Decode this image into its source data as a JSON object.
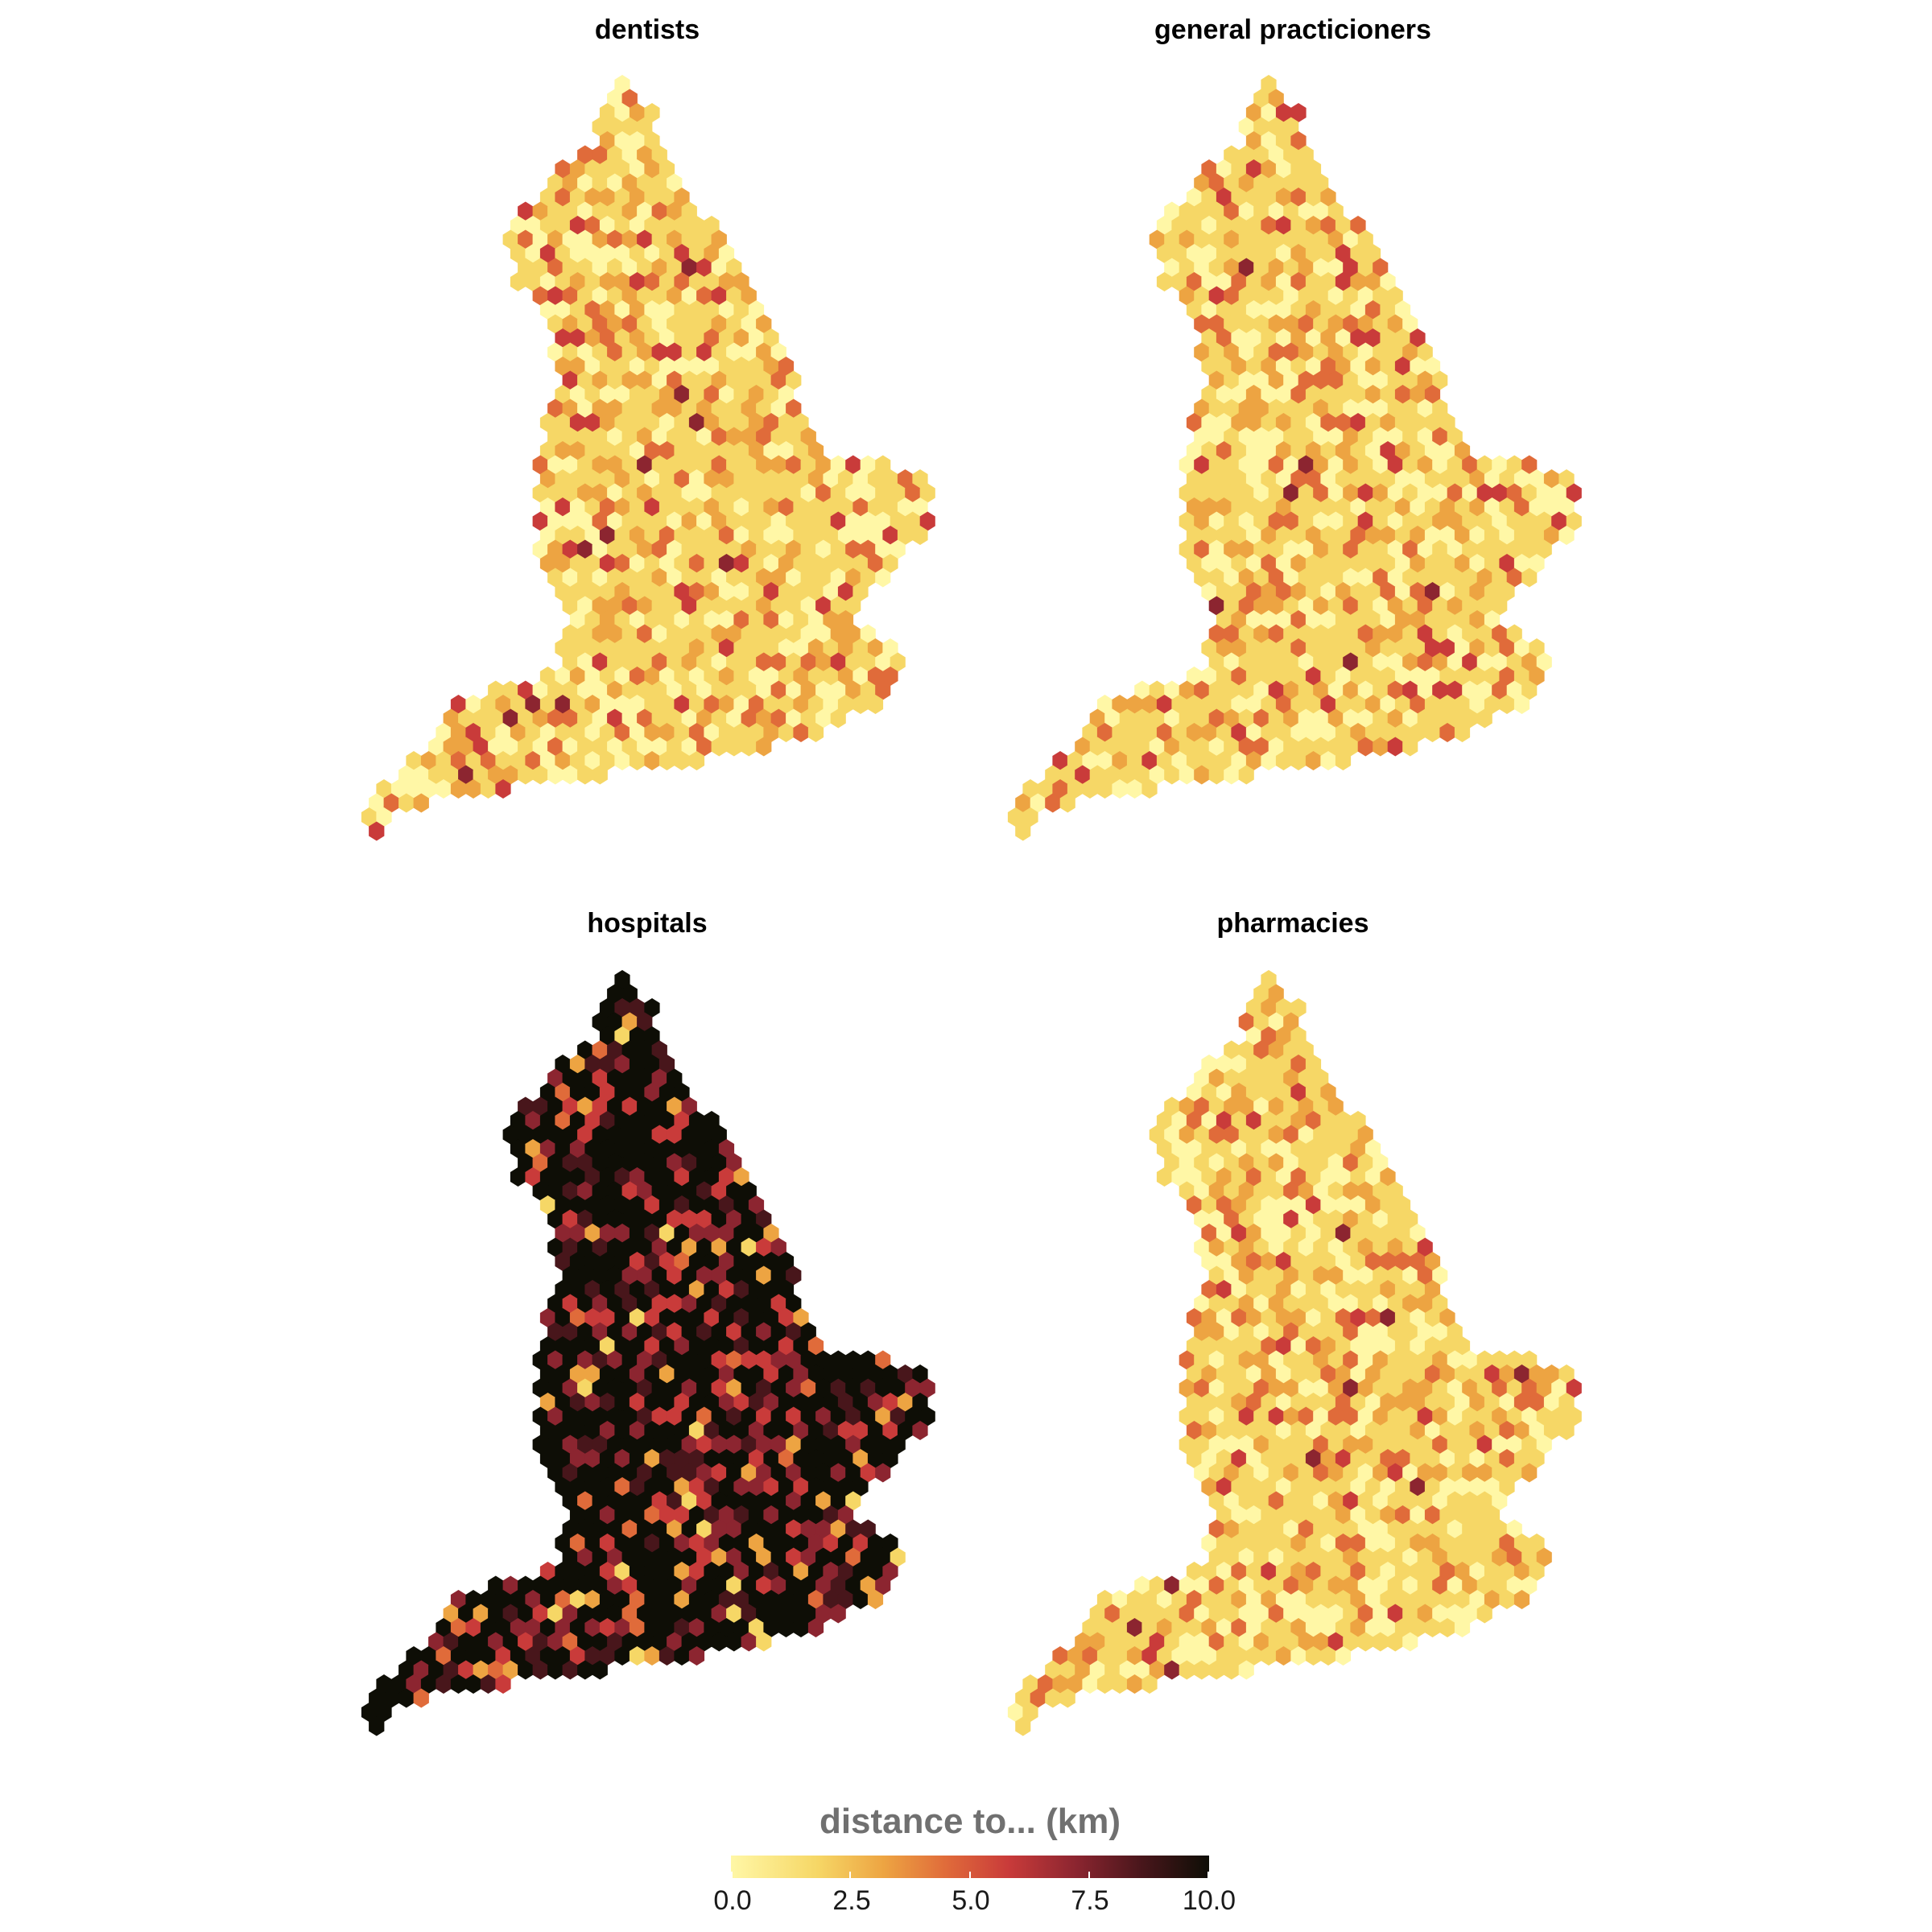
{
  "panels": [
    {
      "title": "dentists",
      "level": "low",
      "seed": 11
    },
    {
      "title": "general practicioners",
      "level": "low",
      "seed": 29
    },
    {
      "title": "hospitals",
      "level": "high",
      "seed": 47
    },
    {
      "title": "pharmacies",
      "level": "low",
      "seed": 83
    }
  ],
  "legend": {
    "title": "distance to... (km)",
    "ticks": [
      "0.0",
      "2.5",
      "5.0",
      "7.5",
      "10.0"
    ],
    "min": 0,
    "max": 10
  },
  "colors": {
    "scale": [
      "#fff7a6",
      "#f6d766",
      "#eda442",
      "#e06b3a",
      "#c93b3a",
      "#8c2530",
      "#48161b",
      "#0e0e06"
    ]
  }
}
